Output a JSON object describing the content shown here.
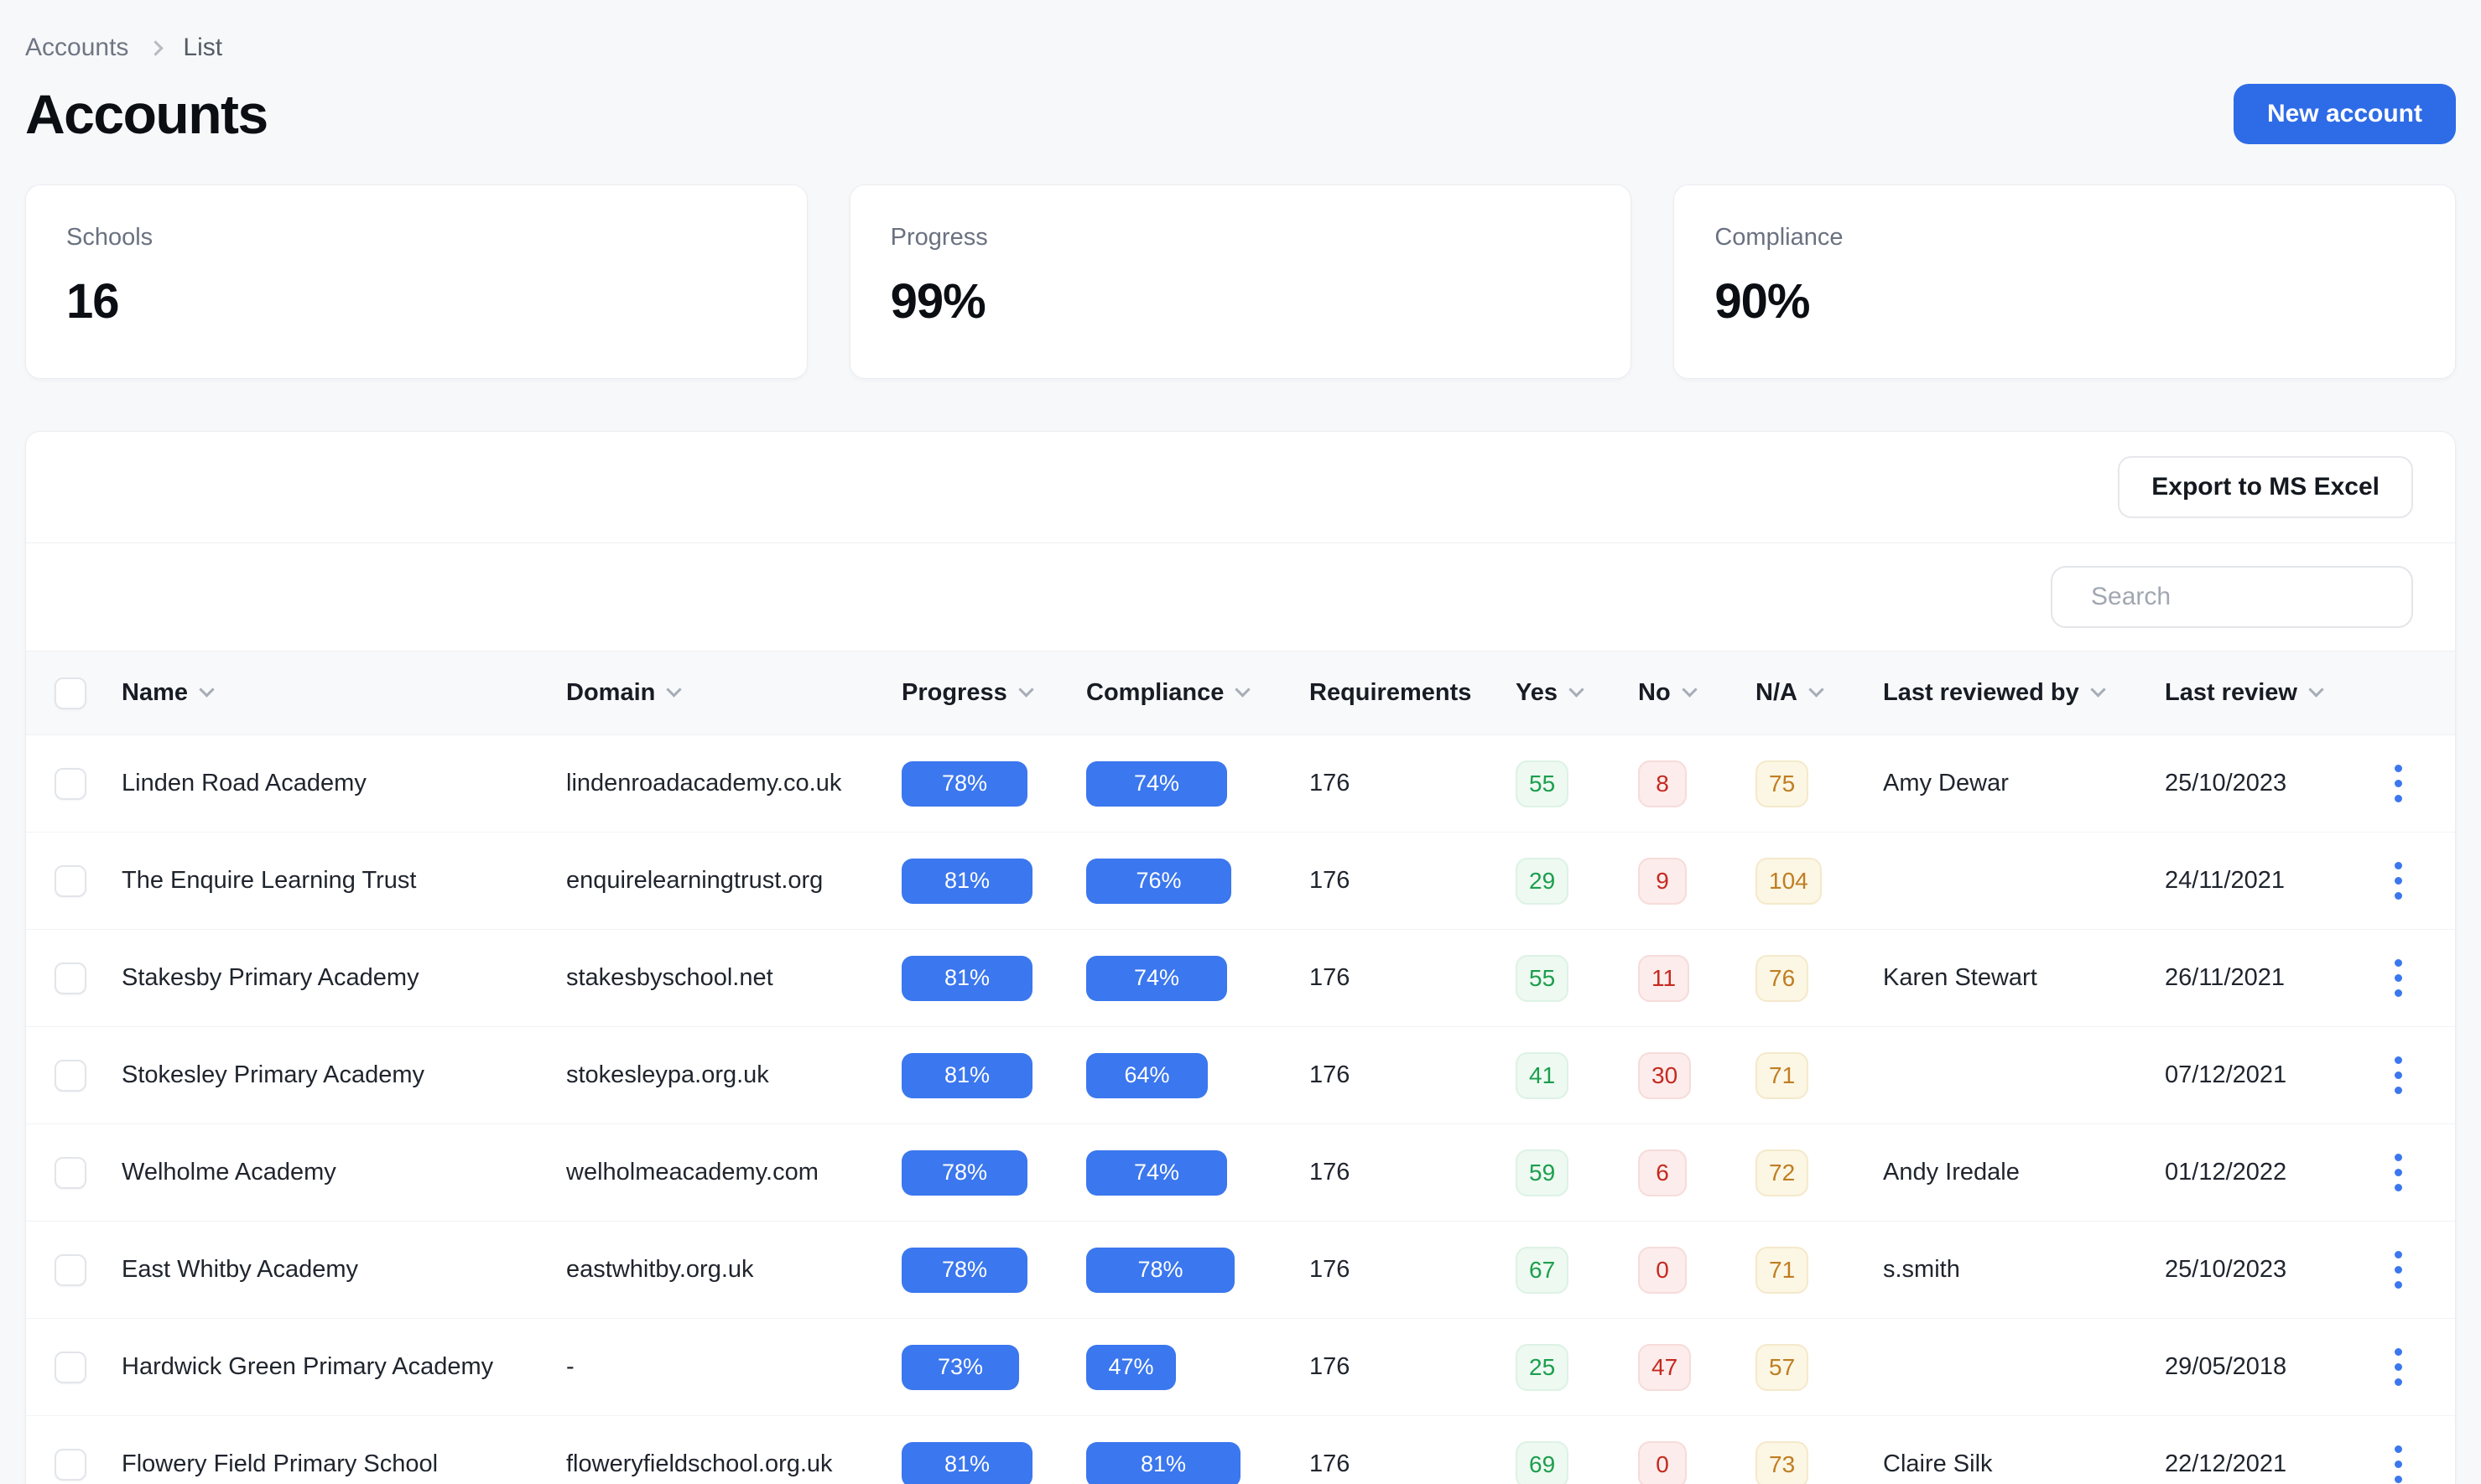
{
  "breadcrumb": {
    "items": [
      "Accounts",
      "List"
    ]
  },
  "header": {
    "title": "Accounts",
    "new_account_label": "New account"
  },
  "stats": [
    {
      "label": "Schools",
      "value": "16"
    },
    {
      "label": "Progress",
      "value": "99%"
    },
    {
      "label": "Compliance",
      "value": "90%"
    }
  ],
  "toolbar": {
    "export_label": "Export to MS Excel"
  },
  "search": {
    "placeholder": "Search",
    "value": "",
    "icon": "search-icon"
  },
  "colors": {
    "accent_button": "#2E6BE6",
    "progress_pill": "#3B77EE",
    "yes_text": "#1C9E4D",
    "no_text": "#C42A20",
    "na_text": "#BF7E22",
    "page_background": "#F7F8FA"
  },
  "table": {
    "columns": [
      {
        "label": "Name",
        "sortable": true
      },
      {
        "label": "Domain",
        "sortable": true
      },
      {
        "label": "Progress",
        "sortable": true
      },
      {
        "label": "Compliance",
        "sortable": true
      },
      {
        "label": "Requirements",
        "sortable": false
      },
      {
        "label": "Yes",
        "sortable": true
      },
      {
        "label": "No",
        "sortable": true
      },
      {
        "label": "N/A",
        "sortable": true
      },
      {
        "label": "Last reviewed by",
        "sortable": true
      },
      {
        "label": "Last review",
        "sortable": true
      }
    ],
    "rows": [
      {
        "name": "Linden Road Academy",
        "domain": "lindenroadacademy.co.uk",
        "progress": 78,
        "compliance": 74,
        "requirements": 176,
        "yes": 55,
        "no": 8,
        "na": 75,
        "last_reviewed_by": "Amy Dewar",
        "last_review": "25/10/2023"
      },
      {
        "name": "The Enquire Learning Trust",
        "domain": "enquirelearningtrust.org",
        "progress": 81,
        "compliance": 76,
        "requirements": 176,
        "yes": 29,
        "no": 9,
        "na": 104,
        "last_reviewed_by": "",
        "last_review": "24/11/2021"
      },
      {
        "name": "Stakesby Primary Academy",
        "domain": "stakesbyschool.net",
        "progress": 81,
        "compliance": 74,
        "requirements": 176,
        "yes": 55,
        "no": 11,
        "na": 76,
        "last_reviewed_by": "Karen Stewart",
        "last_review": "26/11/2021"
      },
      {
        "name": "Stokesley Primary Academy",
        "domain": "stokesleypa.org.uk",
        "progress": 81,
        "compliance": 64,
        "requirements": 176,
        "yes": 41,
        "no": 30,
        "na": 71,
        "last_reviewed_by": "",
        "last_review": "07/12/2021"
      },
      {
        "name": "Welholme Academy",
        "domain": "welholmeacademy.com",
        "progress": 78,
        "compliance": 74,
        "requirements": 176,
        "yes": 59,
        "no": 6,
        "na": 72,
        "last_reviewed_by": "Andy Iredale",
        "last_review": "01/12/2022"
      },
      {
        "name": "East Whitby Academy",
        "domain": "eastwhitby.org.uk",
        "progress": 78,
        "compliance": 78,
        "requirements": 176,
        "yes": 67,
        "no": 0,
        "na": 71,
        "last_reviewed_by": "s.smith",
        "last_review": "25/10/2023"
      },
      {
        "name": "Hardwick Green Primary Academy",
        "domain": "-",
        "progress": 73,
        "compliance": 47,
        "requirements": 176,
        "yes": 25,
        "no": 47,
        "na": 57,
        "last_reviewed_by": "",
        "last_review": "29/05/2018"
      },
      {
        "name": "Flowery Field Primary School",
        "domain": "floweryfieldschool.org.uk",
        "progress": 81,
        "compliance": 81,
        "requirements": 176,
        "yes": 69,
        "no": 0,
        "na": 73,
        "last_reviewed_by": "Claire Silk",
        "last_review": "22/12/2021"
      }
    ]
  }
}
